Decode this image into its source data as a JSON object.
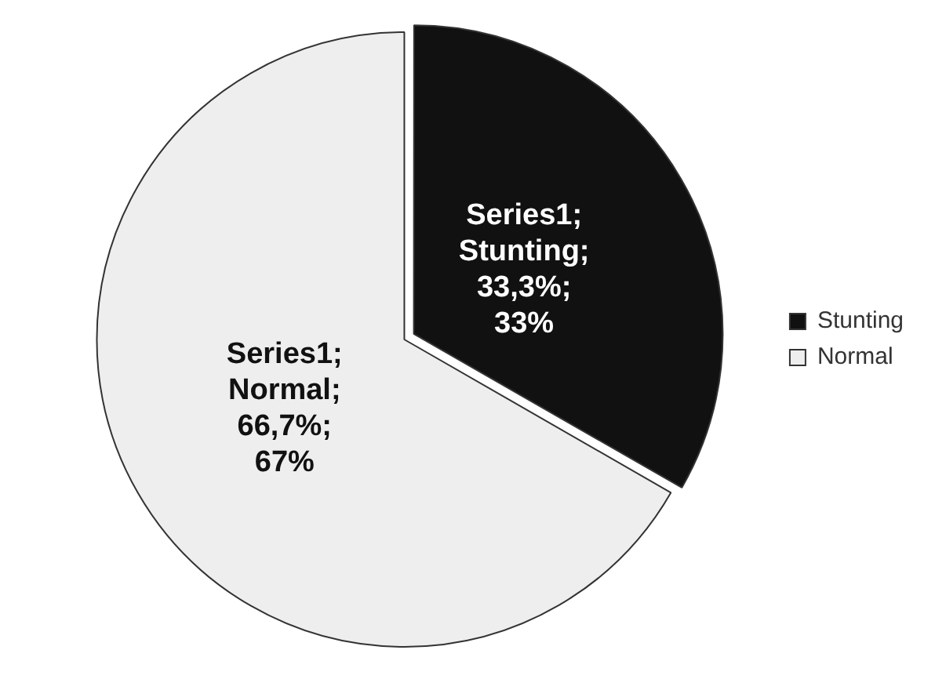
{
  "chart_data": {
    "type": "pie",
    "categories": [
      "Stunting",
      "Normal"
    ],
    "values": [
      33.3,
      66.7
    ],
    "colors": [
      "#111111",
      "#eeeeee"
    ],
    "value_labels": [
      "Series1; Stunting; 33,3%; 33%",
      "Series1; Normal; 66,7%; 67%"
    ],
    "legend": "right"
  }
}
